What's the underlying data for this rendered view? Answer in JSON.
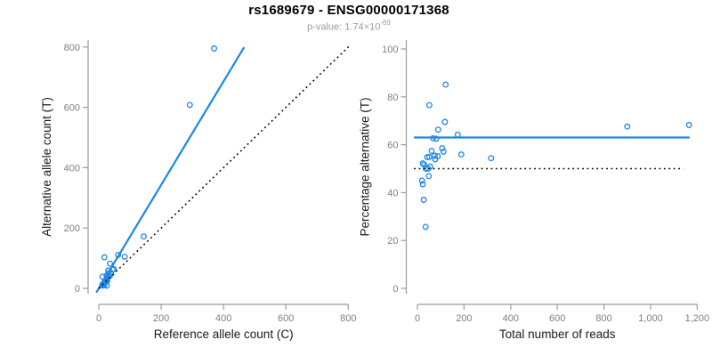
{
  "header": {
    "title": "rs1689679 - ENSG00000171368",
    "pvalue_prefix": "p-value: 1.74×10",
    "pvalue_exponent": "-69"
  },
  "colors": {
    "accent_blue": "#1E87E5",
    "line_black": "#000000",
    "axis_line": "#9B9B9B",
    "tick_label": "#7F7F7F",
    "axis_title": "#1A1A1A",
    "title": "#000000",
    "subtitle": "#9C9C9C",
    "background": "#FFFFFF"
  },
  "chart_data": [
    {
      "id": "left",
      "type": "scatter",
      "xlabel": "Reference allele count (C)",
      "ylabel": "Alternative allele count (T)",
      "xlim": [
        0,
        800
      ],
      "ylim": [
        0,
        800
      ],
      "xticks": [
        0,
        200,
        400,
        600,
        800
      ],
      "xtick_labels": [
        "0",
        "200",
        "400",
        "600",
        "800"
      ],
      "yticks": [
        0,
        200,
        400,
        600,
        800
      ],
      "ytick_labels": [
        "0",
        "200",
        "400",
        "600",
        "800"
      ],
      "grid": false,
      "legend": null,
      "points_format": "[reference_allele_count_C, alternative_allele_count_T]",
      "points": [
        [
          18,
          103
        ],
        [
          12,
          39
        ],
        [
          36,
          82
        ],
        [
          30,
          59
        ],
        [
          62,
          111
        ],
        [
          25,
          42
        ],
        [
          30,
          50
        ],
        [
          44,
          62
        ],
        [
          48,
          64
        ],
        [
          26,
          35
        ],
        [
          33,
          41
        ],
        [
          19,
          23
        ],
        [
          23,
          28
        ],
        [
          39,
          48
        ],
        [
          11,
          12
        ],
        [
          14,
          15
        ],
        [
          35,
          41
        ],
        [
          83,
          105
        ],
        [
          144,
          172
        ],
        [
          18,
          18
        ],
        [
          27,
          28
        ],
        [
          23,
          23
        ],
        [
          26,
          23
        ],
        [
          11,
          9
        ],
        [
          13,
          10
        ],
        [
          17,
          10
        ],
        [
          26,
          9
        ],
        [
          292,
          608
        ],
        [
          370,
          795
        ]
      ],
      "lines": [
        {
          "name": "fit-line",
          "meaning": "allelic ratio fit, slope ~1.72",
          "style": "solid",
          "color": "blue",
          "points": [
            [
              -8,
              -14
            ],
            [
              466,
              799
            ]
          ]
        },
        {
          "name": "identity-line",
          "meaning": "y = x",
          "style": "dotted",
          "color": "black",
          "points": [
            [
              0,
              0
            ],
            [
              803,
              803
            ]
          ]
        }
      ]
    },
    {
      "id": "right",
      "type": "scatter",
      "xlabel": "Total number of reads",
      "ylabel": "Percentage alternative (T)",
      "xlim": [
        0,
        1200
      ],
      "ylim": [
        0,
        100
      ],
      "xticks": [
        0,
        200,
        400,
        600,
        800,
        1000,
        1200
      ],
      "xtick_labels": [
        "0",
        "200",
        "400",
        "600",
        "800",
        "1,000",
        "1,200"
      ],
      "yticks": [
        0,
        20,
        40,
        60,
        80,
        100
      ],
      "ytick_labels": [
        "0",
        "20",
        "40",
        "60",
        "80",
        "100"
      ],
      "grid": false,
      "legend": null,
      "points_format": "[total_reads, percent_alternative_T]",
      "points": [
        [
          121,
          85.1
        ],
        [
          51,
          76.5
        ],
        [
          118,
          69.5
        ],
        [
          89,
          66.3
        ],
        [
          173,
          64.2
        ],
        [
          67,
          62.7
        ],
        [
          80,
          62.5
        ],
        [
          106,
          58.5
        ],
        [
          112,
          57.1
        ],
        [
          61,
          57.4
        ],
        [
          74,
          55.4
        ],
        [
          42,
          54.8
        ],
        [
          51,
          54.9
        ],
        [
          87,
          55.2
        ],
        [
          23,
          52.2
        ],
        [
          29,
          51.7
        ],
        [
          76,
          53.9
        ],
        [
          188,
          55.9
        ],
        [
          316,
          54.4
        ],
        [
          36,
          50.0
        ],
        [
          55,
          50.9
        ],
        [
          46,
          50.0
        ],
        [
          49,
          46.9
        ],
        [
          20,
          45.0
        ],
        [
          23,
          43.5
        ],
        [
          27,
          37.0
        ],
        [
          35,
          25.7
        ],
        [
          900,
          67.6
        ],
        [
          1165,
          68.2
        ]
      ],
      "lines": [
        {
          "name": "fit-line",
          "meaning": "mean percentage alternative ~63%",
          "style": "solid",
          "color": "blue",
          "points": [
            [
              -15,
              63
            ],
            [
              1167,
              63
            ]
          ]
        },
        {
          "name": "identity-line",
          "meaning": "50% balanced-allele reference",
          "style": "dotted",
          "color": "black",
          "points": [
            [
              -15,
              50
            ],
            [
              1140,
              50
            ]
          ]
        }
      ]
    }
  ]
}
